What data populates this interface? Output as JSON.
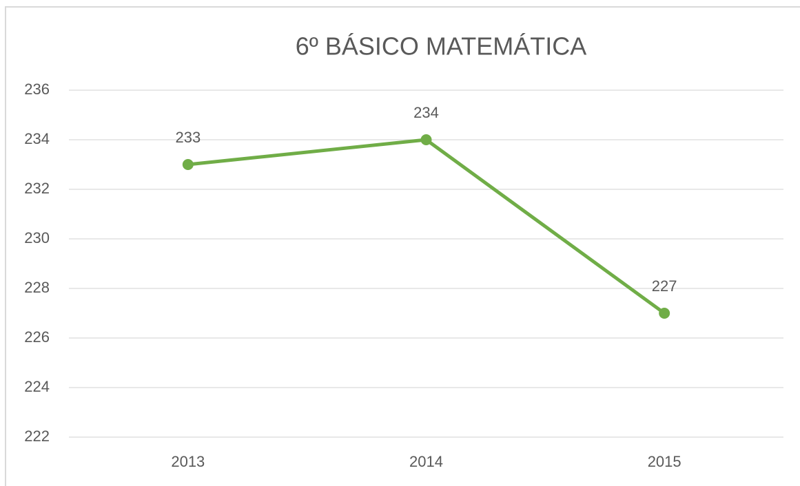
{
  "chart_data": {
    "type": "line",
    "title": "6º BÁSICO MATEMÁTICA",
    "categories": [
      "2013",
      "2014",
      "2015"
    ],
    "series": [
      {
        "name": null,
        "color": "#70ad47",
        "values": [
          233,
          234,
          227
        ]
      }
    ],
    "ylim": [
      222,
      236
    ],
    "yticks": [
      222,
      224,
      226,
      228,
      230,
      232,
      234,
      236
    ],
    "grid": true,
    "data_labels": true
  }
}
